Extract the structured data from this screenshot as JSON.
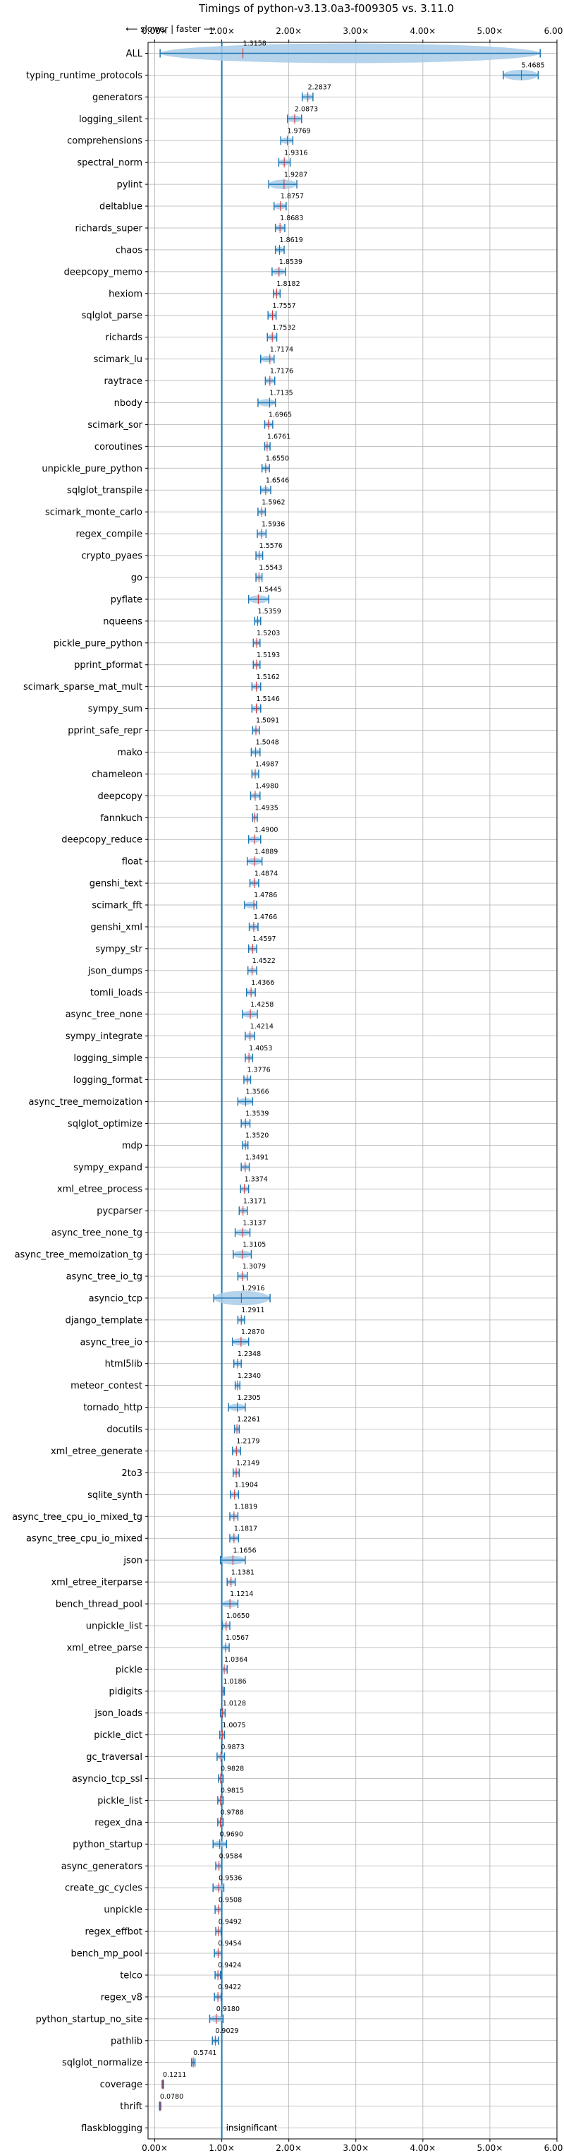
{
  "chart_data": {
    "type": "violin",
    "title": "Timings of python-v3.13.0a3-f009305 vs. 3.11.0",
    "direction_note": "⟵ slower | faster ⟶",
    "insignificant_label": "insignificant",
    "xlim": [
      -0.1,
      6.0
    ],
    "reference_line": 1.0,
    "xticks": [
      0,
      1,
      2,
      3,
      4,
      5,
      6
    ],
    "xtick_labels": [
      "0.00×",
      "1.00×",
      "2.00×",
      "3.00×",
      "4.00×",
      "5.00×",
      "6.00×"
    ],
    "grid": true,
    "colors": {
      "violin": "#a8cbe8",
      "line": "#1f77b4",
      "median": "#d62728",
      "grid": "#b0b0b0"
    },
    "benchmarks": [
      {
        "name": "ALL",
        "value": 1.3158,
        "lo": 0.08,
        "hi": 5.75
      },
      {
        "name": "typing_runtime_protocols",
        "value": 5.4685,
        "lo": 5.2,
        "hi": 5.72
      },
      {
        "name": "generators",
        "value": 2.2837,
        "lo": 2.2,
        "hi": 2.36
      },
      {
        "name": "logging_silent",
        "value": 2.0873,
        "lo": 1.98,
        "hi": 2.19
      },
      {
        "name": "comprehensions",
        "value": 1.9769,
        "lo": 1.88,
        "hi": 2.06
      },
      {
        "name": "spectral_norm",
        "value": 1.9316,
        "lo": 1.85,
        "hi": 2.02
      },
      {
        "name": "pylint",
        "value": 1.9287,
        "lo": 1.7,
        "hi": 2.12
      },
      {
        "name": "deltablue",
        "value": 1.8757,
        "lo": 1.78,
        "hi": 1.96
      },
      {
        "name": "richards_super",
        "value": 1.8683,
        "lo": 1.8,
        "hi": 1.94
      },
      {
        "name": "chaos",
        "value": 1.8619,
        "lo": 1.8,
        "hi": 1.93
      },
      {
        "name": "deepcopy_memo",
        "value": 1.8539,
        "lo": 1.75,
        "hi": 1.95
      },
      {
        "name": "hexiom",
        "value": 1.8182,
        "lo": 1.77,
        "hi": 1.87
      },
      {
        "name": "sqlglot_parse",
        "value": 1.7557,
        "lo": 1.69,
        "hi": 1.81
      },
      {
        "name": "richards",
        "value": 1.7532,
        "lo": 1.68,
        "hi": 1.82
      },
      {
        "name": "scimark_lu",
        "value": 1.7174,
        "lo": 1.58,
        "hi": 1.78
      },
      {
        "name": "raytrace",
        "value": 1.7176,
        "lo": 1.65,
        "hi": 1.79
      },
      {
        "name": "nbody",
        "value": 1.7135,
        "lo": 1.54,
        "hi": 1.8
      },
      {
        "name": "scimark_sor",
        "value": 1.6965,
        "lo": 1.64,
        "hi": 1.76
      },
      {
        "name": "coroutines",
        "value": 1.6761,
        "lo": 1.64,
        "hi": 1.72
      },
      {
        "name": "unpickle_pure_python",
        "value": 1.655,
        "lo": 1.6,
        "hi": 1.71
      },
      {
        "name": "sqlglot_transpile",
        "value": 1.6546,
        "lo": 1.58,
        "hi": 1.73
      },
      {
        "name": "scimark_monte_carlo",
        "value": 1.5962,
        "lo": 1.54,
        "hi": 1.65
      },
      {
        "name": "regex_compile",
        "value": 1.5936,
        "lo": 1.53,
        "hi": 1.66
      },
      {
        "name": "crypto_pyaes",
        "value": 1.5576,
        "lo": 1.51,
        "hi": 1.61
      },
      {
        "name": "go",
        "value": 1.5543,
        "lo": 1.51,
        "hi": 1.6
      },
      {
        "name": "pyflate",
        "value": 1.5445,
        "lo": 1.4,
        "hi": 1.7
      },
      {
        "name": "nqueens",
        "value": 1.5359,
        "lo": 1.49,
        "hi": 1.58
      },
      {
        "name": "pickle_pure_python",
        "value": 1.5203,
        "lo": 1.47,
        "hi": 1.57
      },
      {
        "name": "pprint_pformat",
        "value": 1.5193,
        "lo": 1.47,
        "hi": 1.57
      },
      {
        "name": "scimark_sparse_mat_mult",
        "value": 1.5162,
        "lo": 1.45,
        "hi": 1.58
      },
      {
        "name": "sympy_sum",
        "value": 1.5146,
        "lo": 1.45,
        "hi": 1.58
      },
      {
        "name": "pprint_safe_repr",
        "value": 1.5091,
        "lo": 1.46,
        "hi": 1.56
      },
      {
        "name": "mako",
        "value": 1.5048,
        "lo": 1.44,
        "hi": 1.57
      },
      {
        "name": "chameleon",
        "value": 1.4987,
        "lo": 1.45,
        "hi": 1.55
      },
      {
        "name": "deepcopy",
        "value": 1.498,
        "lo": 1.43,
        "hi": 1.57
      },
      {
        "name": "fannkuch",
        "value": 1.4935,
        "lo": 1.46,
        "hi": 1.53
      },
      {
        "name": "deepcopy_reduce",
        "value": 1.49,
        "lo": 1.4,
        "hi": 1.58
      },
      {
        "name": "float",
        "value": 1.4889,
        "lo": 1.38,
        "hi": 1.6
      },
      {
        "name": "genshi_text",
        "value": 1.4874,
        "lo": 1.42,
        "hi": 1.55
      },
      {
        "name": "scimark_fft",
        "value": 1.4786,
        "lo": 1.34,
        "hi": 1.52
      },
      {
        "name": "genshi_xml",
        "value": 1.4766,
        "lo": 1.41,
        "hi": 1.54
      },
      {
        "name": "sympy_str",
        "value": 1.4597,
        "lo": 1.4,
        "hi": 1.52
      },
      {
        "name": "json_dumps",
        "value": 1.4522,
        "lo": 1.39,
        "hi": 1.52
      },
      {
        "name": "tomli_loads",
        "value": 1.4366,
        "lo": 1.37,
        "hi": 1.5
      },
      {
        "name": "async_tree_none",
        "value": 1.4258,
        "lo": 1.31,
        "hi": 1.53
      },
      {
        "name": "sympy_integrate",
        "value": 1.4214,
        "lo": 1.35,
        "hi": 1.49
      },
      {
        "name": "logging_simple",
        "value": 1.4053,
        "lo": 1.35,
        "hi": 1.46
      },
      {
        "name": "logging_format",
        "value": 1.3776,
        "lo": 1.33,
        "hi": 1.43
      },
      {
        "name": "async_tree_memoization",
        "value": 1.3566,
        "lo": 1.24,
        "hi": 1.46
      },
      {
        "name": "sqlglot_optimize",
        "value": 1.3539,
        "lo": 1.29,
        "hi": 1.42
      },
      {
        "name": "mdp",
        "value": 1.352,
        "lo": 1.31,
        "hi": 1.39
      },
      {
        "name": "sympy_expand",
        "value": 1.3491,
        "lo": 1.29,
        "hi": 1.41
      },
      {
        "name": "xml_etree_process",
        "value": 1.3374,
        "lo": 1.28,
        "hi": 1.4
      },
      {
        "name": "pycparser",
        "value": 1.3171,
        "lo": 1.26,
        "hi": 1.38
      },
      {
        "name": "async_tree_none_tg",
        "value": 1.3137,
        "lo": 1.2,
        "hi": 1.42
      },
      {
        "name": "async_tree_memoization_tg",
        "value": 1.3105,
        "lo": 1.17,
        "hi": 1.44
      },
      {
        "name": "async_tree_io_tg",
        "value": 1.3079,
        "lo": 1.24,
        "hi": 1.38
      },
      {
        "name": "asyncio_tcp",
        "value": 1.2916,
        "lo": 0.88,
        "hi": 1.72
      },
      {
        "name": "django_template",
        "value": 1.2911,
        "lo": 1.24,
        "hi": 1.34
      },
      {
        "name": "async_tree_io",
        "value": 1.287,
        "lo": 1.16,
        "hi": 1.4
      },
      {
        "name": "html5lib",
        "value": 1.2348,
        "lo": 1.18,
        "hi": 1.29
      },
      {
        "name": "meteor_contest",
        "value": 1.234,
        "lo": 1.2,
        "hi": 1.27
      },
      {
        "name": "tornado_http",
        "value": 1.2305,
        "lo": 1.1,
        "hi": 1.35
      },
      {
        "name": "docutils",
        "value": 1.2261,
        "lo": 1.19,
        "hi": 1.26
      },
      {
        "name": "xml_etree_generate",
        "value": 1.2179,
        "lo": 1.16,
        "hi": 1.28
      },
      {
        "name": "2to3",
        "value": 1.2149,
        "lo": 1.17,
        "hi": 1.26
      },
      {
        "name": "sqlite_synth",
        "value": 1.1904,
        "lo": 1.13,
        "hi": 1.25
      },
      {
        "name": "async_tree_cpu_io_mixed_tg",
        "value": 1.1819,
        "lo": 1.12,
        "hi": 1.24
      },
      {
        "name": "async_tree_cpu_io_mixed",
        "value": 1.1817,
        "lo": 1.12,
        "hi": 1.25
      },
      {
        "name": "json",
        "value": 1.1656,
        "lo": 0.98,
        "hi": 1.35
      },
      {
        "name": "xml_etree_iterparse",
        "value": 1.1381,
        "lo": 1.08,
        "hi": 1.2
      },
      {
        "name": "bench_thread_pool",
        "value": 1.1214,
        "lo": 1.0,
        "hi": 1.24
      },
      {
        "name": "unpickle_list",
        "value": 1.065,
        "lo": 1.01,
        "hi": 1.12
      },
      {
        "name": "xml_etree_parse",
        "value": 1.0567,
        "lo": 1.0,
        "hi": 1.11
      },
      {
        "name": "pickle",
        "value": 1.0364,
        "lo": 1.0,
        "hi": 1.08
      },
      {
        "name": "pidigits",
        "value": 1.0186,
        "lo": 1.0,
        "hi": 1.04
      },
      {
        "name": "json_loads",
        "value": 1.0128,
        "lo": 0.98,
        "hi": 1.05
      },
      {
        "name": "pickle_dict",
        "value": 1.0075,
        "lo": 0.97,
        "hi": 1.04
      },
      {
        "name": "gc_traversal",
        "value": 0.9873,
        "lo": 0.93,
        "hi": 1.04
      },
      {
        "name": "asyncio_tcp_ssl",
        "value": 0.9828,
        "lo": 0.95,
        "hi": 1.02
      },
      {
        "name": "pickle_list",
        "value": 0.9815,
        "lo": 0.94,
        "hi": 1.02
      },
      {
        "name": "regex_dna",
        "value": 0.9788,
        "lo": 0.94,
        "hi": 1.02
      },
      {
        "name": "python_startup",
        "value": 0.969,
        "lo": 0.87,
        "hi": 1.07
      },
      {
        "name": "async_generators",
        "value": 0.9584,
        "lo": 0.91,
        "hi": 1.0
      },
      {
        "name": "create_gc_cycles",
        "value": 0.9536,
        "lo": 0.87,
        "hi": 1.03
      },
      {
        "name": "unpickle",
        "value": 0.9508,
        "lo": 0.9,
        "hi": 1.0
      },
      {
        "name": "regex_effbot",
        "value": 0.9492,
        "lo": 0.91,
        "hi": 0.99
      },
      {
        "name": "bench_mp_pool",
        "value": 0.9454,
        "lo": 0.89,
        "hi": 1.0
      },
      {
        "name": "telco",
        "value": 0.9424,
        "lo": 0.9,
        "hi": 0.98
      },
      {
        "name": "regex_v8",
        "value": 0.9422,
        "lo": 0.89,
        "hi": 0.99
      },
      {
        "name": "python_startup_no_site",
        "value": 0.918,
        "lo": 0.82,
        "hi": 1.02
      },
      {
        "name": "pathlib",
        "value": 0.9029,
        "lo": 0.86,
        "hi": 0.95
      },
      {
        "name": "sqlglot_normalize",
        "value": 0.5741,
        "lo": 0.55,
        "hi": 0.6
      },
      {
        "name": "coverage",
        "value": 0.1211,
        "lo": 0.11,
        "hi": 0.13
      },
      {
        "name": "thrift",
        "value": 0.078,
        "lo": 0.07,
        "hi": 0.09
      },
      {
        "name": "flaskblogging",
        "value": null,
        "lo": null,
        "hi": null,
        "note": "insignificant"
      }
    ]
  }
}
